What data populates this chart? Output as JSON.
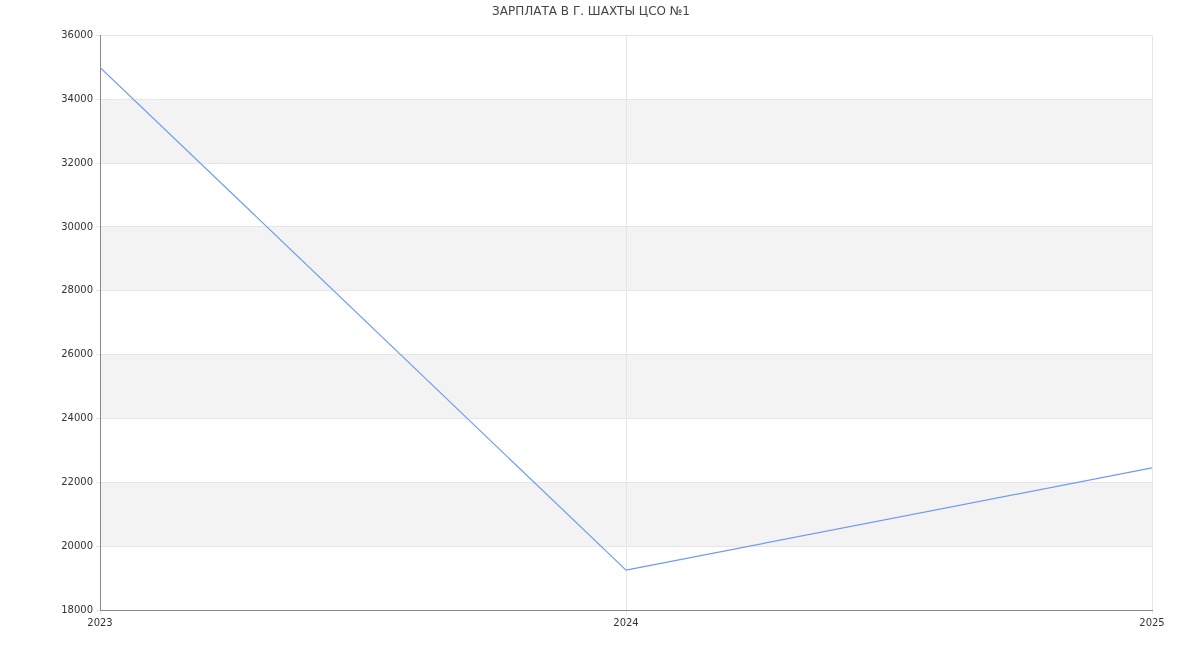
{
  "chart_data": {
    "type": "line",
    "title": "ЗАРПЛАТА В Г. ШАХТЫ ЦСО №1",
    "x": [
      2023,
      2024,
      2025
    ],
    "series": [
      {
        "color": "#6f9cf0",
        "values": [
          35000,
          19250,
          22450
        ]
      }
    ],
    "xlim": [
      2023,
      2025
    ],
    "xticks": [
      2023,
      2024,
      2025
    ],
    "ylim": [
      18000,
      36000
    ],
    "yticks": [
      18000,
      20000,
      22000,
      24000,
      26000,
      28000,
      30000,
      32000,
      34000,
      36000
    ],
    "grid": true,
    "legend": false,
    "marker": "none",
    "line_style": "solid"
  }
}
